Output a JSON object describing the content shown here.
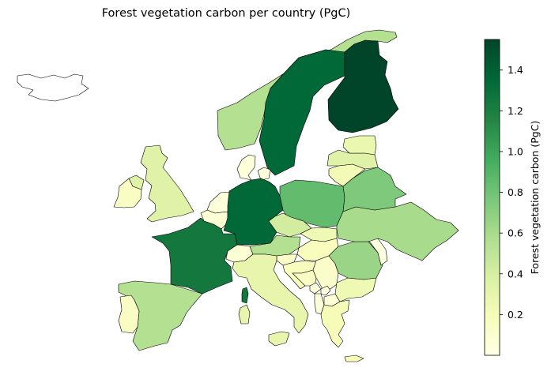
{
  "title": "Forest vegetation carbon per country (PgC)",
  "colorbar": {
    "label": "Forest vegetation carbon (PgC)",
    "min": 0.0,
    "max": 1.55,
    "ticks": [
      0.2,
      0.4,
      0.6,
      0.8,
      1.0,
      1.2,
      1.4
    ],
    "tick_labels": [
      "0.2",
      "0.4",
      "0.6",
      "0.8",
      "1.0",
      "1.2",
      "1.4"
    ],
    "colormap": [
      "#ffffe5",
      "#f7fcb9",
      "#d9f0a3",
      "#addd8e",
      "#78c679",
      "#41ab5d",
      "#238443",
      "#006837",
      "#004529"
    ]
  },
  "chart_data": {
    "type": "choropleth",
    "title": "Forest vegetation carbon per country (PgC)",
    "value_label": "Forest vegetation carbon (PgC)",
    "range": [
      0.0,
      1.55
    ],
    "regions": [
      {
        "id": "iceland",
        "value": null
      },
      {
        "id": "norway",
        "value": 0.55
      },
      {
        "id": "sweden",
        "value": 1.35
      },
      {
        "id": "finland",
        "value": 1.55
      },
      {
        "id": "denmark",
        "value": 0.05
      },
      {
        "id": "ireland",
        "value": 0.15
      },
      {
        "id": "northern-ireland",
        "value": 0.35
      },
      {
        "id": "great-britain",
        "value": 0.35
      },
      {
        "id": "netherlands",
        "value": 0.05
      },
      {
        "id": "belgium",
        "value": 0.08
      },
      {
        "id": "luxembourg",
        "value": 0.03
      },
      {
        "id": "france",
        "value": 1.25
      },
      {
        "id": "germany",
        "value": 1.35
      },
      {
        "id": "poland",
        "value": 0.85
      },
      {
        "id": "czechia",
        "value": 0.42
      },
      {
        "id": "slovakia",
        "value": 0.25
      },
      {
        "id": "switzerland",
        "value": 0.08
      },
      {
        "id": "austria",
        "value": 0.55
      },
      {
        "id": "hungary",
        "value": 0.18
      },
      {
        "id": "slovenia",
        "value": 0.12
      },
      {
        "id": "croatia",
        "value": 0.18
      },
      {
        "id": "bosnia",
        "value": 0.15
      },
      {
        "id": "serbia",
        "value": 0.12
      },
      {
        "id": "montenegro",
        "value": 0.05
      },
      {
        "id": "kosovo",
        "value": 0.03
      },
      {
        "id": "albania",
        "value": 0.05
      },
      {
        "id": "north-macedonia",
        "value": 0.06
      },
      {
        "id": "bulgaria",
        "value": 0.25
      },
      {
        "id": "romania",
        "value": 0.65
      },
      {
        "id": "moldova",
        "value": 0.03
      },
      {
        "id": "ukraine",
        "value": 0.6
      },
      {
        "id": "belarus",
        "value": 0.75
      },
      {
        "id": "lithuania",
        "value": 0.22
      },
      {
        "id": "latvia",
        "value": 0.35
      },
      {
        "id": "estonia",
        "value": 0.28
      },
      {
        "id": "italy",
        "value": 0.3
      },
      {
        "id": "sardinia",
        "value": 0.3
      },
      {
        "id": "sicily",
        "value": 0.3
      },
      {
        "id": "corsica",
        "value": 1.25
      },
      {
        "id": "spain",
        "value": 0.55
      },
      {
        "id": "portugal",
        "value": 0.15
      },
      {
        "id": "greece",
        "value": 0.2
      },
      {
        "id": "crete",
        "value": 0.2
      }
    ]
  }
}
